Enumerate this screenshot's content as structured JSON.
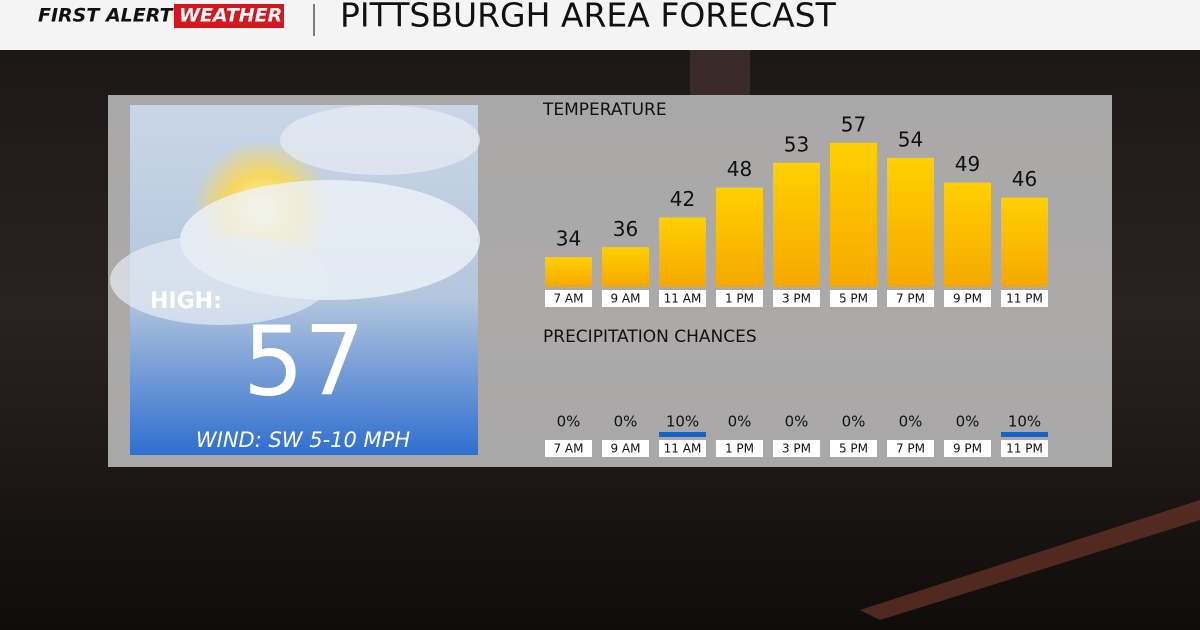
{
  "header": {
    "brand": "FIRST ALERT",
    "brand_box": "WEATHER",
    "title": "PITTSBURGH AREA FORECAST"
  },
  "high": {
    "label": "HIGH:",
    "value": 57,
    "wind": "WIND: SW 5-10 MPH"
  },
  "chart_data": [
    {
      "type": "bar",
      "title": "TEMPERATURE",
      "categories": [
        "7 AM",
        "9 AM",
        "11 AM",
        "1 PM",
        "3 PM",
        "5 PM",
        "7 PM",
        "9 PM",
        "11 PM"
      ],
      "values": [
        34,
        36,
        42,
        48,
        53,
        57,
        54,
        49,
        46
      ],
      "color": "#ffbf00",
      "ylim": [
        28,
        60
      ]
    },
    {
      "type": "bar",
      "title": "PRECIPITATION CHANCES",
      "categories": [
        "7 AM",
        "9 AM",
        "11 AM",
        "1 PM",
        "3 PM",
        "5 PM",
        "7 PM",
        "9 PM",
        "11 PM"
      ],
      "values": [
        0,
        0,
        10,
        0,
        0,
        0,
        0,
        0,
        10
      ],
      "value_labels": [
        "0%",
        "0%",
        "10%",
        "0%",
        "0%",
        "0%",
        "0%",
        "0%",
        "10%"
      ],
      "color": "#1463c8",
      "ylim": [
        0,
        100
      ]
    }
  ]
}
